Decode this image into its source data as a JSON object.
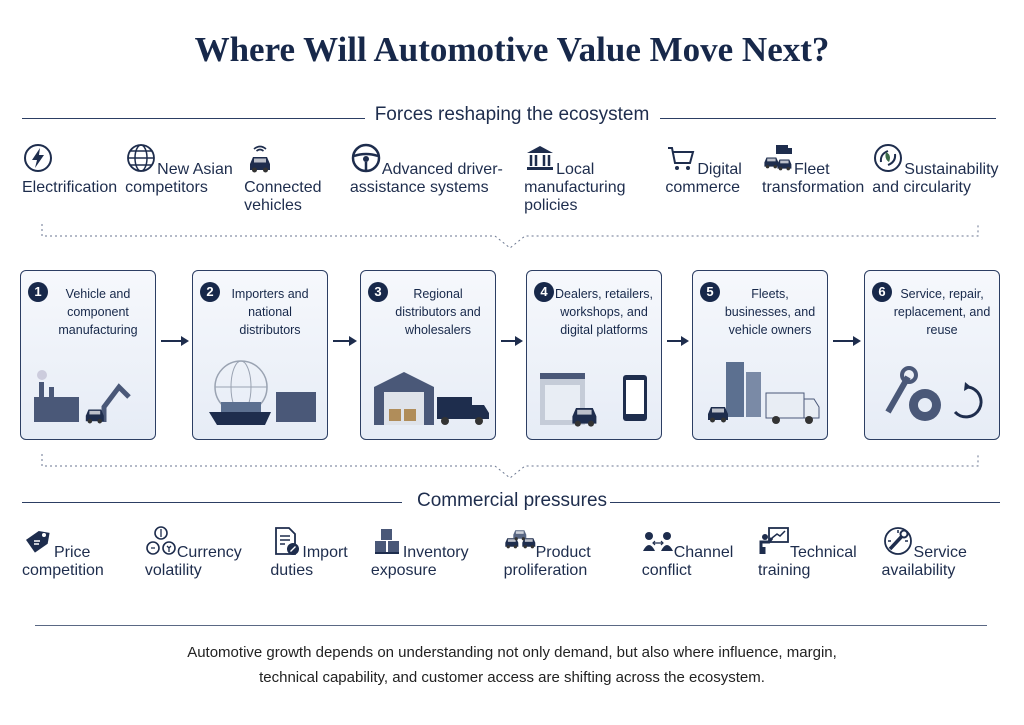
{
  "title": "Where Will Automotive Value Move Next?",
  "forces": {
    "heading": "Forces reshaping the ecosystem",
    "items": [
      "Electrification",
      "New Asian competitors",
      "Connected vehicles",
      "Advanced driver-assistance systems",
      "Local manufacturing policies",
      "Digital commerce",
      "Fleet transformation",
      "Sustainability and circularity"
    ]
  },
  "stages": [
    {
      "number": "1",
      "label": "Vehicle and component manufacturing"
    },
    {
      "number": "2",
      "label": "Importers and national distributors"
    },
    {
      "number": "3",
      "label": "Regional distributors and wholesalers"
    },
    {
      "number": "4",
      "label": "Dealers, retailers, workshops, and digital platforms"
    },
    {
      "number": "5",
      "label": "Fleets, businesses, and vehicle owners"
    },
    {
      "number": "6",
      "label": "Service, repair, replacement, and reuse"
    }
  ],
  "pressures": {
    "heading": "Commercial pressures",
    "items": [
      "Price competition",
      "Currency volatility",
      "Import duties",
      "Inventory exposure",
      "Product proliferation",
      "Channel conflict",
      "Technical training",
      "Service availability"
    ]
  },
  "footer": "Automotive growth depends on understanding not only demand, but also where influence, margin, technical capability, and customer access are shifting across the ecosystem."
}
